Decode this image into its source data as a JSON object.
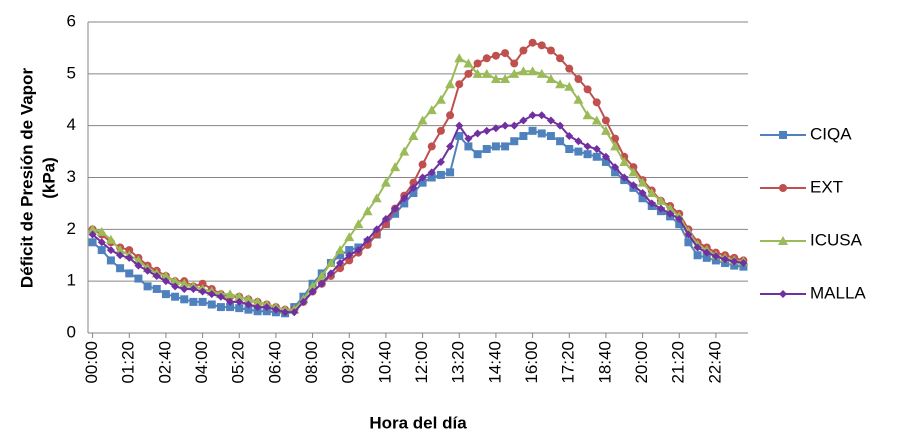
{
  "chart_data": {
    "type": "line",
    "ylabel": [
      "Déficit de Presión de Vapor",
      "(kPa)"
    ],
    "xlabel": "Hora del día",
    "categories": [
      "00:00",
      null,
      null,
      null,
      "01:20",
      null,
      null,
      null,
      "02:40",
      null,
      null,
      null,
      "04:00",
      null,
      null,
      null,
      "05:20",
      null,
      null,
      null,
      "06:40",
      null,
      null,
      null,
      "08:00",
      null,
      null,
      null,
      "09:20",
      null,
      null,
      null,
      "10:40",
      null,
      null,
      null,
      "12:00",
      null,
      null,
      null,
      "13:20",
      null,
      null,
      null,
      "14:40",
      null,
      null,
      null,
      "16:00",
      null,
      null,
      null,
      "17:20",
      null,
      null,
      null,
      "18:40",
      null,
      null,
      null,
      "20:00",
      null,
      null,
      null,
      "21:20",
      null,
      null,
      null,
      "22:40",
      null,
      null,
      null
    ],
    "ylim": [
      0,
      6
    ],
    "yticks": [
      0,
      1,
      2,
      3,
      4,
      5,
      6
    ],
    "grid": true,
    "series": [
      {
        "name": "CIQA",
        "color": "#4f81bd",
        "marker": "square",
        "values": [
          1.75,
          1.6,
          1.4,
          1.25,
          1.15,
          1.05,
          0.9,
          0.85,
          0.75,
          0.7,
          0.65,
          0.6,
          0.6,
          0.55,
          0.5,
          0.5,
          0.48,
          0.45,
          0.42,
          0.42,
          0.4,
          0.38,
          0.5,
          0.7,
          0.95,
          1.15,
          1.35,
          1.5,
          1.6,
          1.65,
          1.75,
          1.9,
          2.1,
          2.3,
          2.5,
          2.7,
          2.9,
          3.0,
          3.05,
          3.1,
          3.8,
          3.6,
          3.45,
          3.55,
          3.6,
          3.6,
          3.7,
          3.8,
          3.9,
          3.85,
          3.8,
          3.7,
          3.55,
          3.5,
          3.45,
          3.4,
          3.3,
          3.1,
          2.95,
          2.8,
          2.6,
          2.45,
          2.35,
          2.25,
          2.1,
          1.75,
          1.5,
          1.45,
          1.4,
          1.35,
          1.3,
          1.28
        ]
      },
      {
        "name": "EXT",
        "color": "#c0504d",
        "marker": "circle",
        "values": [
          2.0,
          1.9,
          1.75,
          1.65,
          1.6,
          1.45,
          1.3,
          1.2,
          1.1,
          1.0,
          1.0,
          0.9,
          0.95,
          0.85,
          0.75,
          0.7,
          0.7,
          0.65,
          0.6,
          0.55,
          0.5,
          0.45,
          0.45,
          0.6,
          0.8,
          0.95,
          1.1,
          1.25,
          1.4,
          1.55,
          1.7,
          1.9,
          2.1,
          2.4,
          2.65,
          2.9,
          3.25,
          3.6,
          3.9,
          4.2,
          4.8,
          5.0,
          5.2,
          5.3,
          5.35,
          5.4,
          5.2,
          5.45,
          5.6,
          5.55,
          5.45,
          5.3,
          5.1,
          4.9,
          4.7,
          4.45,
          4.1,
          3.75,
          3.4,
          3.2,
          2.95,
          2.75,
          2.55,
          2.45,
          2.3,
          2.0,
          1.75,
          1.65,
          1.55,
          1.5,
          1.45,
          1.4
        ]
      },
      {
        "name": "ICUSA",
        "color": "#9bbb59",
        "marker": "triangle",
        "values": [
          2.0,
          1.95,
          1.8,
          1.6,
          1.5,
          1.4,
          1.25,
          1.15,
          1.1,
          1.0,
          0.95,
          0.9,
          0.85,
          0.8,
          0.75,
          0.75,
          0.7,
          0.65,
          0.6,
          0.55,
          0.5,
          0.45,
          0.45,
          0.65,
          0.9,
          1.1,
          1.35,
          1.6,
          1.85,
          2.1,
          2.35,
          2.6,
          2.9,
          3.2,
          3.5,
          3.8,
          4.1,
          4.3,
          4.5,
          4.8,
          5.3,
          5.2,
          5.0,
          5.0,
          4.9,
          4.9,
          5.0,
          5.05,
          5.05,
          5.0,
          4.9,
          4.8,
          4.75,
          4.5,
          4.2,
          4.1,
          3.9,
          3.6,
          3.3,
          3.1,
          2.9,
          2.7,
          2.55,
          2.4,
          2.25,
          1.95,
          1.7,
          1.6,
          1.5,
          1.45,
          1.4,
          1.38
        ]
      },
      {
        "name": "MALLA",
        "color": "#7030a0",
        "marker": "diamond",
        "values": [
          1.9,
          1.75,
          1.6,
          1.5,
          1.45,
          1.3,
          1.2,
          1.1,
          1.0,
          0.9,
          0.85,
          0.85,
          0.8,
          0.75,
          0.7,
          0.6,
          0.6,
          0.55,
          0.5,
          0.5,
          0.45,
          0.4,
          0.4,
          0.6,
          0.8,
          0.95,
          1.15,
          1.35,
          1.5,
          1.6,
          1.8,
          2.0,
          2.2,
          2.4,
          2.6,
          2.8,
          3.0,
          3.1,
          3.3,
          3.6,
          4.0,
          3.75,
          3.85,
          3.9,
          3.95,
          4.0,
          4.0,
          4.1,
          4.2,
          4.2,
          4.1,
          4.0,
          3.8,
          3.7,
          3.6,
          3.55,
          3.4,
          3.2,
          3.0,
          2.85,
          2.7,
          2.5,
          2.4,
          2.3,
          2.2,
          1.9,
          1.65,
          1.55,
          1.48,
          1.42,
          1.38,
          1.35
        ]
      }
    ]
  }
}
